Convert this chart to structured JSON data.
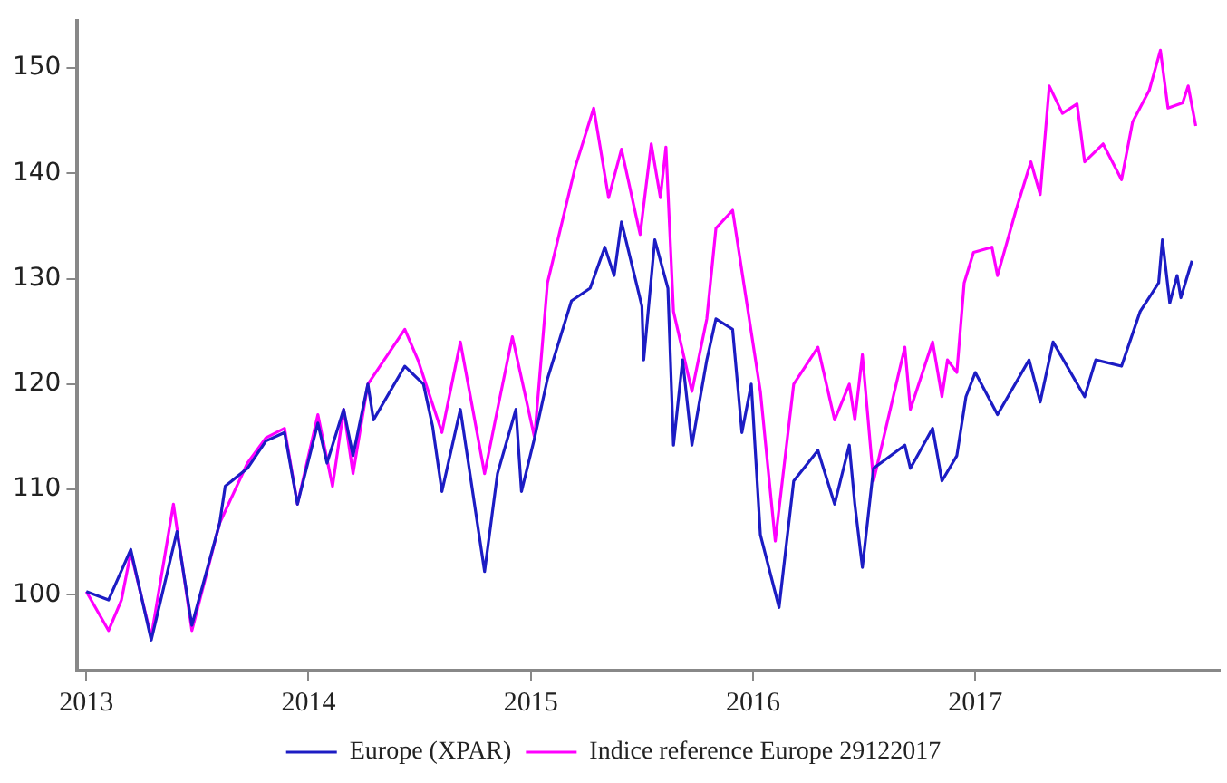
{
  "chart_data": {
    "type": "line",
    "xlim": [
      2012.96,
      2018.1
    ],
    "xticks": [
      2013,
      2014,
      2015,
      2016,
      2017
    ],
    "ylim": [
      92.8,
      154.5
    ],
    "yticks": [
      100,
      110,
      120,
      130,
      140,
      150
    ],
    "grid": false,
    "legend": "bottom",
    "marker": "none",
    "line_style": "solid",
    "series": [
      {
        "name": "Europe (XPAR)",
        "color": "#1c1cc4",
        "x": [
          2013.0,
          2013.1,
          2013.2,
          2013.292,
          2013.408,
          2013.475,
          2013.6,
          2013.625,
          2013.725,
          2013.808,
          2013.892,
          2013.95,
          2014.042,
          2014.083,
          2014.158,
          2014.2,
          2014.267,
          2014.292,
          2014.433,
          2014.517,
          2014.558,
          2014.6,
          2014.683,
          2014.792,
          2014.85,
          2014.933,
          2014.958,
          2015.017,
          2015.075,
          2015.183,
          2015.267,
          2015.333,
          2015.375,
          2015.408,
          2015.5,
          2015.508,
          2015.558,
          2015.617,
          2015.642,
          2015.683,
          2015.725,
          2015.792,
          2015.833,
          2015.908,
          2015.95,
          2015.992,
          2016.033,
          2016.117,
          2016.183,
          2016.292,
          2016.367,
          2016.433,
          2016.458,
          2016.492,
          2016.542,
          2016.683,
          2016.708,
          2016.808,
          2016.85,
          2016.917,
          2016.958,
          2017.0,
          2017.1,
          2017.242,
          2017.292,
          2017.35,
          2017.492,
          2017.542,
          2017.658,
          2017.742,
          2017.825,
          2017.842,
          2017.875,
          2017.908,
          2017.925,
          2017.975
        ],
        "values": [
          100.3,
          99.5,
          104.3,
          95.7,
          106,
          97.1,
          106.8,
          110.3,
          112,
          114.6,
          115.4,
          108.6,
          116.3,
          112.5,
          117.6,
          113.2,
          120,
          116.6,
          121.7,
          120,
          116,
          109.8,
          117.6,
          102.2,
          111.5,
          117.6,
          109.8,
          114.9,
          120.5,
          127.9,
          129.1,
          133,
          130.3,
          135.4,
          127.4,
          122.3,
          133.7,
          129.1,
          114.2,
          122.3,
          114.2,
          122.3,
          126.2,
          125.2,
          115.4,
          120,
          105.7,
          98.8,
          110.8,
          113.7,
          108.6,
          114.2,
          108.6,
          102.6,
          112,
          114.2,
          112,
          115.8,
          110.8,
          113.2,
          118.8,
          121.1,
          117.1,
          122.3,
          118.3,
          124,
          118.8,
          122.3,
          121.7,
          126.9,
          129.6,
          133.7,
          127.7,
          130.3,
          128.2,
          131.7
        ]
      },
      {
        "name": "Indice reference Europe 29122017",
        "color": "#ff00ff",
        "x": [
          2013.0,
          2013.1,
          2013.158,
          2013.2,
          2013.292,
          2013.392,
          2013.475,
          2013.6,
          2013.725,
          2013.808,
          2013.892,
          2013.95,
          2014.042,
          2014.108,
          2014.158,
          2014.2,
          2014.267,
          2014.433,
          2014.492,
          2014.6,
          2014.683,
          2014.792,
          2014.85,
          2014.917,
          2015.017,
          2015.075,
          2015.2,
          2015.283,
          2015.35,
          2015.408,
          2015.492,
          2015.542,
          2015.583,
          2015.608,
          2015.642,
          2015.725,
          2015.792,
          2015.833,
          2015.908,
          2015.958,
          2016.033,
          2016.1,
          2016.183,
          2016.292,
          2016.367,
          2016.433,
          2016.458,
          2016.492,
          2016.542,
          2016.683,
          2016.708,
          2016.808,
          2016.85,
          2016.875,
          2016.917,
          2016.95,
          2016.992,
          2017.075,
          2017.1,
          2017.183,
          2017.25,
          2017.292,
          2017.333,
          2017.392,
          2017.458,
          2017.492,
          2017.575,
          2017.658,
          2017.708,
          2017.783,
          2017.833,
          2017.867,
          2017.933,
          2017.958,
          2017.992
        ],
        "values": [
          100.3,
          96.6,
          99.5,
          104,
          96,
          108.6,
          96.6,
          106.8,
          112.5,
          114.9,
          115.8,
          108.6,
          117.1,
          110.3,
          117.6,
          111.5,
          120,
          125.2,
          122.3,
          115.4,
          124,
          111.5,
          117.6,
          124.5,
          114.9,
          129.6,
          140.6,
          146.2,
          137.7,
          142.3,
          134.2,
          142.8,
          137.7,
          142.5,
          126.9,
          119.3,
          126.2,
          134.8,
          136.5,
          129.6,
          119.3,
          105.1,
          120,
          123.5,
          116.6,
          120,
          116.6,
          122.8,
          110.8,
          123.5,
          117.6,
          124,
          118.8,
          122.3,
          121.1,
          129.6,
          132.5,
          133,
          130.3,
          136.5,
          141.1,
          138,
          148.3,
          145.7,
          146.6,
          141.1,
          142.8,
          139.4,
          144.9,
          147.9,
          151.7,
          146.2,
          146.7,
          148.3,
          144.5
        ]
      }
    ]
  }
}
